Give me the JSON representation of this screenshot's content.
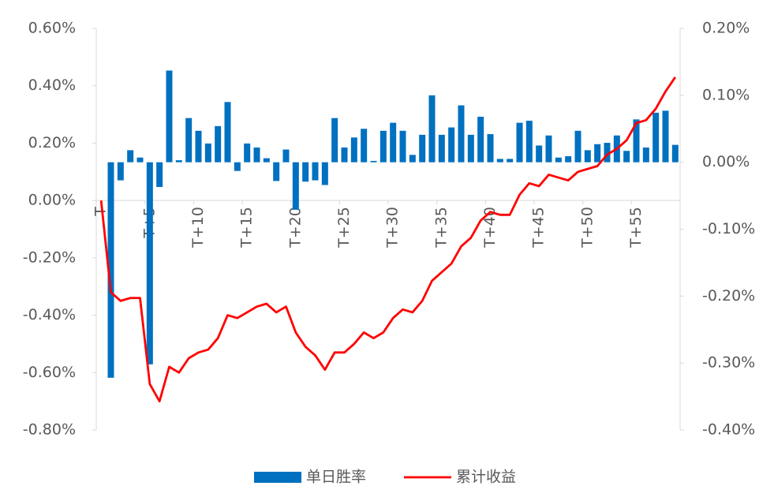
{
  "chart_data": {
    "type": "bar_line",
    "categories": [
      "T",
      null,
      null,
      null,
      null,
      "T+5",
      null,
      null,
      null,
      null,
      "T+10",
      null,
      null,
      null,
      null,
      "T+15",
      null,
      null,
      null,
      null,
      "T+20",
      null,
      null,
      null,
      null,
      "T+25",
      null,
      null,
      null,
      null,
      "T+30",
      null,
      null,
      null,
      null,
      "T+35",
      null,
      null,
      null,
      null,
      "T+40",
      null,
      null,
      null,
      null,
      "T+45",
      null,
      null,
      null,
      null,
      "T+50",
      null,
      null,
      null,
      null,
      "T+55",
      null,
      null,
      null,
      null
    ],
    "series": [
      {
        "name": "单日胜率",
        "type": "bar",
        "axis": "y2",
        "color": "#0070c0",
        "values": [
          null,
          -0.322,
          -0.027,
          0.018,
          0.007,
          -0.302,
          -0.037,
          0.137,
          0.003,
          0.066,
          0.047,
          0.028,
          0.054,
          0.09,
          -0.013,
          0.028,
          0.022,
          0.006,
          -0.028,
          0.019,
          -0.071,
          -0.029,
          -0.027,
          -0.034,
          0.066,
          0.022,
          0.037,
          0.05,
          0.002,
          0.047,
          0.059,
          0.047,
          0.011,
          0.041,
          0.1,
          0.041,
          0.052,
          0.085,
          0.041,
          0.068,
          0.042,
          0.005,
          0.005,
          0.059,
          0.062,
          0.025,
          0.04,
          0.007,
          0.009,
          0.047,
          0.018,
          0.027,
          0.029,
          0.04,
          0.017,
          0.064,
          0.022,
          0.074,
          0.077,
          0.026
        ]
      },
      {
        "name": "累计收益",
        "type": "line",
        "axis": "y",
        "color": "#ff0000",
        "values": [
          0.0,
          -0.32,
          -0.35,
          -0.34,
          -0.34,
          -0.64,
          -0.7,
          -0.58,
          -0.6,
          -0.55,
          -0.53,
          -0.52,
          -0.48,
          -0.4,
          -0.41,
          -0.39,
          -0.37,
          -0.36,
          -0.39,
          -0.37,
          -0.46,
          -0.51,
          -0.54,
          -0.59,
          -0.53,
          -0.53,
          -0.5,
          -0.46,
          -0.48,
          -0.46,
          -0.41,
          -0.38,
          -0.39,
          -0.35,
          -0.28,
          -0.25,
          -0.22,
          -0.16,
          -0.13,
          -0.07,
          -0.04,
          -0.05,
          -0.05,
          0.02,
          0.06,
          0.05,
          0.09,
          0.08,
          0.07,
          0.1,
          0.11,
          0.12,
          0.16,
          0.18,
          0.21,
          0.27,
          0.28,
          0.32,
          0.38,
          0.43
        ]
      }
    ],
    "ylim": [
      -0.8,
      0.6
    ],
    "yticks": [
      {
        "value": -0.8,
        "label": "-0.80%"
      },
      {
        "value": -0.6,
        "label": "-0.60%"
      },
      {
        "value": -0.4,
        "label": "-0.40%"
      },
      {
        "value": -0.2,
        "label": "-0.20%"
      },
      {
        "value": 0,
        "label": "0.00%"
      },
      {
        "value": 0.2,
        "label": "0.20%"
      },
      {
        "value": 0.4,
        "label": "0.40%"
      },
      {
        "value": 0.6,
        "label": "0.60%"
      }
    ],
    "y2lim": [
      -0.4,
      0.2
    ],
    "y2ticks": [
      {
        "value": -0.4,
        "label": "-0.40%"
      },
      {
        "value": -0.3,
        "label": "-0.30%"
      },
      {
        "value": -0.2,
        "label": "-0.20%"
      },
      {
        "value": -0.1,
        "label": "-0.10%"
      },
      {
        "value": 0,
        "label": "0.00%"
      },
      {
        "value": 0.1,
        "label": "0.10%"
      },
      {
        "value": 0.2,
        "label": "0.20%"
      }
    ],
    "legend": "bottom"
  }
}
